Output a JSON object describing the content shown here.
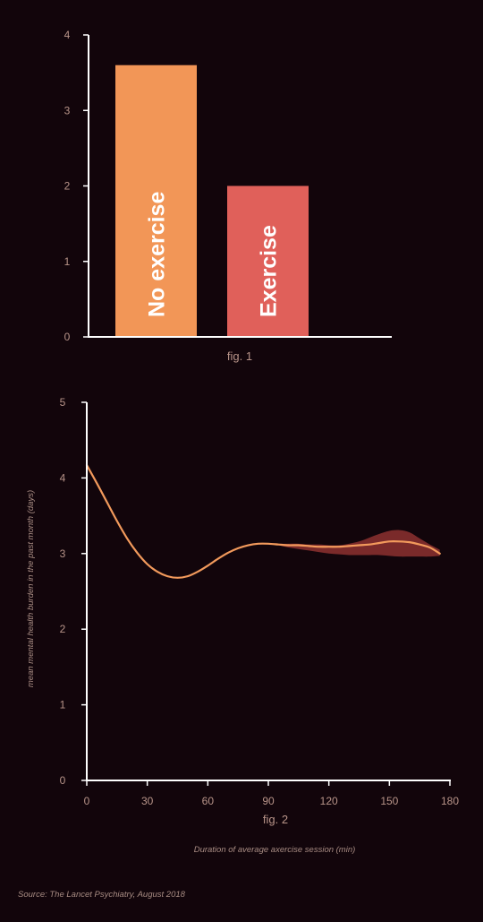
{
  "colors": {
    "background": "#12050b",
    "axis": "#ffffff",
    "tick_label": "#b89489",
    "no_exercise_bar": "#f29657",
    "exercise_bar": "#e0605a",
    "curve": "#f29a5c",
    "band": "#7a2a2a",
    "muted_text": "#a88c83"
  },
  "chart_data": [
    {
      "type": "bar",
      "caption": "fig. 1",
      "categories": [
        "No exercise",
        "Exercise"
      ],
      "values": [
        3.6,
        2.0
      ],
      "ylim": [
        0,
        4
      ],
      "yticks": [
        "0",
        "1",
        "2",
        "3",
        "4"
      ]
    },
    {
      "type": "line",
      "caption": "fig. 2",
      "xlabel": "Duration of average axercise session (min)",
      "ylabel": "mean mental health burden in the past month (days)",
      "xlim": [
        0,
        180
      ],
      "ylim": [
        0,
        5
      ],
      "xticks": [
        "0",
        "30",
        "60",
        "90",
        "120",
        "150",
        "180"
      ],
      "yticks": [
        "0",
        "1",
        "2",
        "3",
        "4",
        "5"
      ],
      "series": [
        {
          "x": [
            0,
            5,
            10,
            15,
            20,
            25,
            30,
            35,
            40,
            45,
            50,
            55,
            60,
            65,
            70,
            75,
            80,
            85,
            90,
            95,
            100,
            105,
            110,
            115,
            120,
            125,
            130,
            135,
            140,
            145,
            150,
            155,
            160,
            165,
            170,
            175
          ],
          "y": [
            4.17,
            3.93,
            3.68,
            3.43,
            3.2,
            3.01,
            2.86,
            2.76,
            2.7,
            2.68,
            2.7,
            2.76,
            2.84,
            2.93,
            3.01,
            3.07,
            3.11,
            3.13,
            3.13,
            3.12,
            3.11,
            3.11,
            3.1,
            3.09,
            3.09,
            3.09,
            3.1,
            3.11,
            3.12,
            3.14,
            3.16,
            3.16,
            3.15,
            3.12,
            3.08,
            3.0
          ],
          "lower": [
            4.17,
            3.93,
            3.68,
            3.43,
            3.2,
            3.01,
            2.86,
            2.76,
            2.7,
            2.68,
            2.7,
            2.76,
            2.84,
            2.93,
            3.01,
            3.07,
            3.11,
            3.13,
            3.13,
            3.11,
            3.08,
            3.06,
            3.04,
            3.02,
            3.0,
            2.99,
            2.98,
            2.98,
            2.98,
            2.98,
            2.97,
            2.96,
            2.96,
            2.96,
            2.96,
            2.97
          ],
          "upper": [
            4.17,
            3.93,
            3.68,
            3.43,
            3.2,
            3.01,
            2.86,
            2.76,
            2.7,
            2.68,
            2.7,
            2.76,
            2.84,
            2.93,
            3.01,
            3.07,
            3.11,
            3.13,
            3.13,
            3.13,
            3.13,
            3.13,
            3.12,
            3.12,
            3.11,
            3.11,
            3.13,
            3.16,
            3.21,
            3.26,
            3.3,
            3.31,
            3.28,
            3.2,
            3.12,
            3.05
          ]
        }
      ]
    }
  ],
  "source": "Source: The Lancet Psychiatry, August 2018"
}
